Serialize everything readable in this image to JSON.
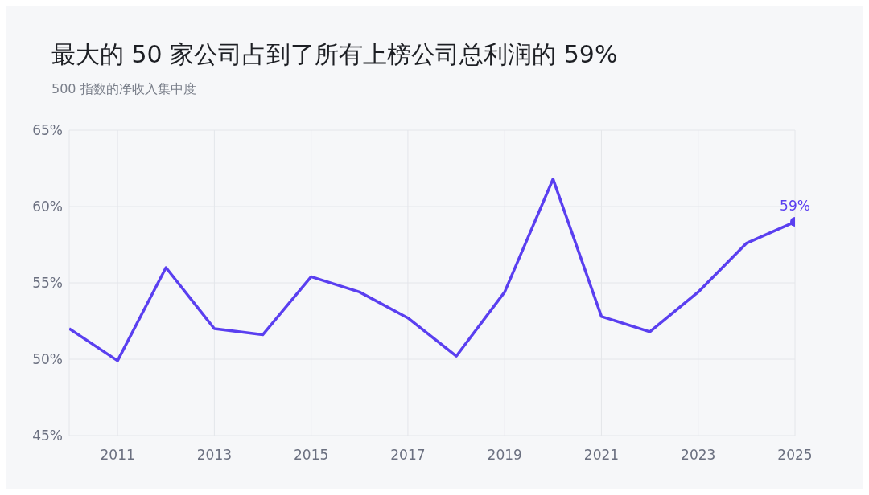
{
  "chart_data": {
    "type": "line",
    "title": "最大的 50 家公司占到了所有上榜公司总利润的 59%",
    "subtitle": "500 指数的净收入集中度",
    "x": [
      2010,
      2011,
      2012,
      2013,
      2014,
      2015,
      2016,
      2017,
      2018,
      2019,
      2020,
      2021,
      2022,
      2023,
      2024,
      2025
    ],
    "series": [
      {
        "color": "#5a3ff0",
        "values": [
          52.0,
          49.9,
          56.0,
          52.0,
          51.6,
          55.4,
          54.4,
          52.7,
          50.2,
          54.4,
          61.8,
          52.8,
          51.8,
          54.4,
          57.6,
          59
        ],
        "value_labels": [
          null,
          null,
          null,
          null,
          null,
          null,
          null,
          null,
          null,
          null,
          null,
          null,
          null,
          null,
          null,
          "59%"
        ]
      }
    ],
    "xlim": [
      2010,
      2025
    ],
    "xticks": [
      2011,
      2013,
      2015,
      2017,
      2019,
      2021,
      2023,
      2025
    ],
    "ylim": [
      45,
      65
    ],
    "yticks": [
      {
        "value": 45,
        "label": "45%"
      },
      {
        "value": 50,
        "label": "50%"
      },
      {
        "value": 55,
        "label": "55%"
      },
      {
        "value": 60,
        "label": "60%"
      },
      {
        "value": 65,
        "label": "65%"
      }
    ],
    "grid": true,
    "line_style": "solid"
  }
}
